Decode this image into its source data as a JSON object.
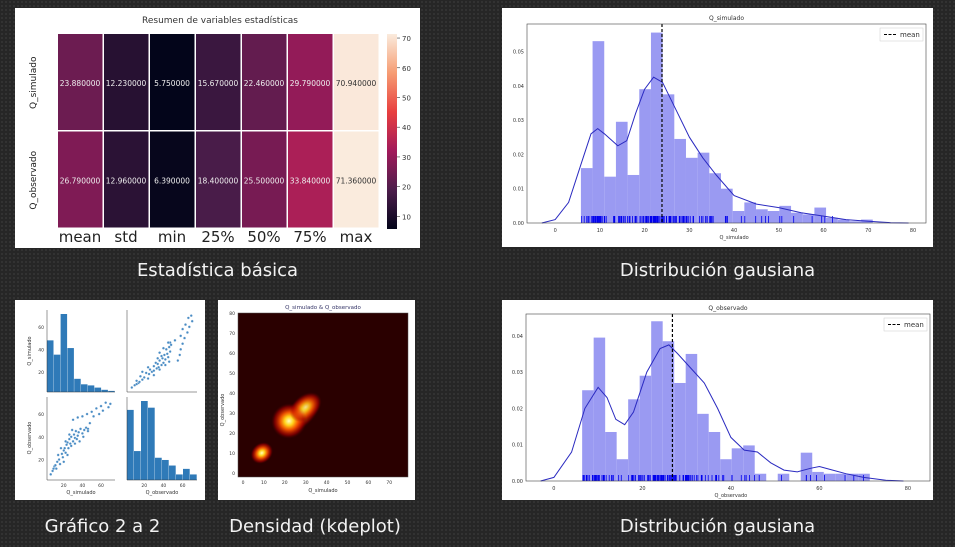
{
  "captions": {
    "stats": "Estadística básica",
    "dist1": "Distribución gausiana",
    "pair": "Gráfico 2 a 2",
    "kde": "Densidad (kdeplot)",
    "dist2": "Distribución gausiana"
  },
  "chart_data": [
    {
      "type": "heatmap",
      "title": "Resumen de variables estadísticas",
      "rows": [
        "Q_simulado",
        "Q_observado"
      ],
      "columns": [
        "mean",
        "std",
        "min",
        "25%",
        "50%",
        "75%",
        "max"
      ],
      "values": [
        [
          23.88,
          12.23,
          5.75,
          15.67,
          22.46,
          29.79,
          70.94
        ],
        [
          26.79,
          12.96,
          6.39,
          18.4,
          25.5,
          33.84,
          71.36
        ]
      ],
      "labels": [
        [
          "23.880000",
          "12.230000",
          "5.750000",
          "15.670000",
          "22.460000",
          "29.790000",
          "70.940000"
        ],
        [
          "26.790000",
          "12.960000",
          "6.390000",
          "18.400000",
          "25.500000",
          "33.840000",
          "71.360000"
        ]
      ],
      "colorbar": {
        "ticks": [
          "10",
          "20",
          "30",
          "40",
          "50",
          "60",
          "70"
        ],
        "range": [
          5.75,
          71.36
        ]
      }
    },
    {
      "type": "bar",
      "title": "Q_simulado",
      "xlabel": "Q_simulado",
      "legend": "mean",
      "legend_position": "top-right",
      "mean": 23.88,
      "bin_start": 5.75,
      "bin_width": 2.61,
      "values": [
        0.016,
        0.053,
        0.0135,
        0.0295,
        0.014,
        0.039,
        0.0555,
        0.0375,
        0.0245,
        0.019,
        0.0205,
        0.0145,
        0.01,
        0.0035,
        0.006,
        0.004,
        0.0035,
        0.005,
        0.003,
        0.0025,
        0.0045,
        0.0015,
        0.001,
        0.0005,
        0.001
      ],
      "kde": [
        [
          -3,
          0
        ],
        [
          0,
          0.001
        ],
        [
          3,
          0.006
        ],
        [
          6,
          0.018
        ],
        [
          8,
          0.026
        ],
        [
          9.5,
          0.0275
        ],
        [
          11,
          0.026
        ],
        [
          14,
          0.0225
        ],
        [
          16,
          0.024
        ],
        [
          18,
          0.032
        ],
        [
          20,
          0.039
        ],
        [
          22,
          0.0425
        ],
        [
          24,
          0.041
        ],
        [
          27,
          0.033
        ],
        [
          30,
          0.025
        ],
        [
          33,
          0.019
        ],
        [
          36,
          0.014
        ],
        [
          40,
          0.008
        ],
        [
          45,
          0.0055
        ],
        [
          50,
          0.0045
        ],
        [
          55,
          0.003
        ],
        [
          60,
          0.002
        ],
        [
          65,
          0.001
        ],
        [
          70,
          0.0005
        ],
        [
          75,
          0.0001
        ],
        [
          79,
          0
        ]
      ],
      "xticks": [
        "0",
        "10",
        "20",
        "30",
        "40",
        "50",
        "60",
        "70",
        "80"
      ],
      "yticks": [
        "0.00",
        "0.01",
        "0.02",
        "0.03",
        "0.04",
        "0.05"
      ],
      "xlim": [
        -6.3,
        82.9
      ],
      "ylim": [
        0,
        0.058
      ]
    },
    {
      "type": "bar",
      "title": "Q_observado",
      "xlabel": "Q_observado",
      "legend": "mean",
      "legend_position": "top-right",
      "mean": 26.79,
      "bin_start": 6.39,
      "bin_width": 2.6,
      "values": [
        0.025,
        0.0395,
        0.0135,
        0.006,
        0.0225,
        0.029,
        0.044,
        0.0385,
        0.027,
        0.035,
        0.0185,
        0.0135,
        0.006,
        0.009,
        0.0098,
        0.002,
        0,
        0.002,
        0,
        0.0078,
        0.0025,
        0.002,
        0.002,
        0.002,
        0.002
      ],
      "kde": [
        [
          -3,
          0
        ],
        [
          0,
          0.001
        ],
        [
          4,
          0.008
        ],
        [
          7,
          0.02
        ],
        [
          10,
          0.0258
        ],
        [
          12,
          0.023
        ],
        [
          14,
          0.017
        ],
        [
          16,
          0.0155
        ],
        [
          18,
          0.019
        ],
        [
          21,
          0.03
        ],
        [
          24,
          0.0365
        ],
        [
          26,
          0.0375
        ],
        [
          28,
          0.035
        ],
        [
          31,
          0.031
        ],
        [
          34,
          0.027
        ],
        [
          37,
          0.02
        ],
        [
          40,
          0.012
        ],
        [
          43,
          0.0085
        ],
        [
          46,
          0.008
        ],
        [
          49,
          0.005
        ],
        [
          52,
          0.003
        ],
        [
          55,
          0.0025
        ],
        [
          58,
          0.0035
        ],
        [
          60,
          0.004
        ],
        [
          63,
          0.003
        ],
        [
          66,
          0.002
        ],
        [
          70,
          0.001
        ],
        [
          75,
          0.0002
        ],
        [
          79,
          0
        ]
      ],
      "xticks": [
        "0",
        "20",
        "40",
        "60",
        "80"
      ],
      "yticks": [
        "0.00",
        "0.01",
        "0.02",
        "0.03",
        "0.04"
      ],
      "xlim": [
        -6.3,
        85
      ],
      "ylim": [
        0,
        0.046
      ]
    },
    {
      "type": "scatter",
      "subtype": "pairplot",
      "variables": [
        "Q_simulado",
        "Q_observado"
      ],
      "hist_sim": [
        47,
        34,
        71,
        40,
        12,
        7,
        6,
        4,
        2,
        1
      ],
      "hist_obs": [
        63,
        26,
        71,
        65,
        20,
        18,
        13,
        5,
        10,
        5
      ],
      "points": [
        [
          6,
          7
        ],
        [
          8,
          10
        ],
        [
          10,
          14
        ],
        [
          12,
          12
        ],
        [
          13,
          18
        ],
        [
          15,
          20
        ],
        [
          16,
          16
        ],
        [
          18,
          25
        ],
        [
          19,
          22
        ],
        [
          20,
          28
        ],
        [
          21,
          30
        ],
        [
          22,
          26
        ],
        [
          23,
          33
        ],
        [
          24,
          35
        ],
        [
          25,
          30
        ],
        [
          26,
          38
        ],
        [
          27,
          34
        ],
        [
          28,
          40
        ],
        [
          30,
          36
        ],
        [
          31,
          42
        ],
        [
          32,
          39
        ],
        [
          33,
          45
        ],
        [
          35,
          41
        ],
        [
          36,
          44
        ],
        [
          38,
          47
        ],
        [
          40,
          43
        ],
        [
          42,
          46
        ],
        [
          44,
          48
        ],
        [
          46,
          47
        ],
        [
          48,
          52
        ],
        [
          30,
          55
        ],
        [
          35,
          57
        ],
        [
          40,
          58
        ],
        [
          45,
          60
        ],
        [
          50,
          62
        ],
        [
          52,
          58
        ],
        [
          55,
          65
        ],
        [
          58,
          60
        ],
        [
          60,
          67
        ],
        [
          62,
          63
        ],
        [
          65,
          70
        ],
        [
          68,
          66
        ],
        [
          70,
          69
        ],
        [
          14,
          24
        ],
        [
          17,
          30
        ],
        [
          22,
          36
        ],
        [
          26,
          42
        ],
        [
          29,
          46
        ],
        [
          34,
          38
        ],
        [
          37,
          36
        ],
        [
          20,
          18
        ],
        [
          11,
          15
        ],
        [
          9,
          12
        ],
        [
          24,
          24
        ],
        [
          28,
          32
        ],
        [
          32,
          34
        ],
        [
          41,
          40
        ],
        [
          46,
          45
        ]
      ],
      "xlabels": [
        "Q_simulado",
        "Q_observado"
      ],
      "ylabels": [
        "Q_simulado",
        "Q_observado"
      ],
      "ticks": [
        "20",
        "40",
        "60"
      ]
    },
    {
      "type": "heatmap",
      "subtype": "kde",
      "title": "Q_simulado  & Q_observado",
      "xlabel": "Q_simulado",
      "ylabel": "Q_observado",
      "xticks": [
        "0",
        "10",
        "20",
        "30",
        "40",
        "50",
        "60",
        "70"
      ],
      "yticks": [
        "0",
        "10",
        "20",
        "30",
        "40",
        "50",
        "60",
        "70",
        "80"
      ],
      "peaks": [
        {
          "x": 9,
          "y": 10,
          "sx": 4,
          "sy": 4,
          "w": 1
        },
        {
          "x": 22,
          "y": 26,
          "sx": 6,
          "sy": 7,
          "w": 1
        },
        {
          "x": 30,
          "y": 33,
          "sx": 6,
          "sy": 5,
          "w": 0.7
        }
      ]
    }
  ]
}
